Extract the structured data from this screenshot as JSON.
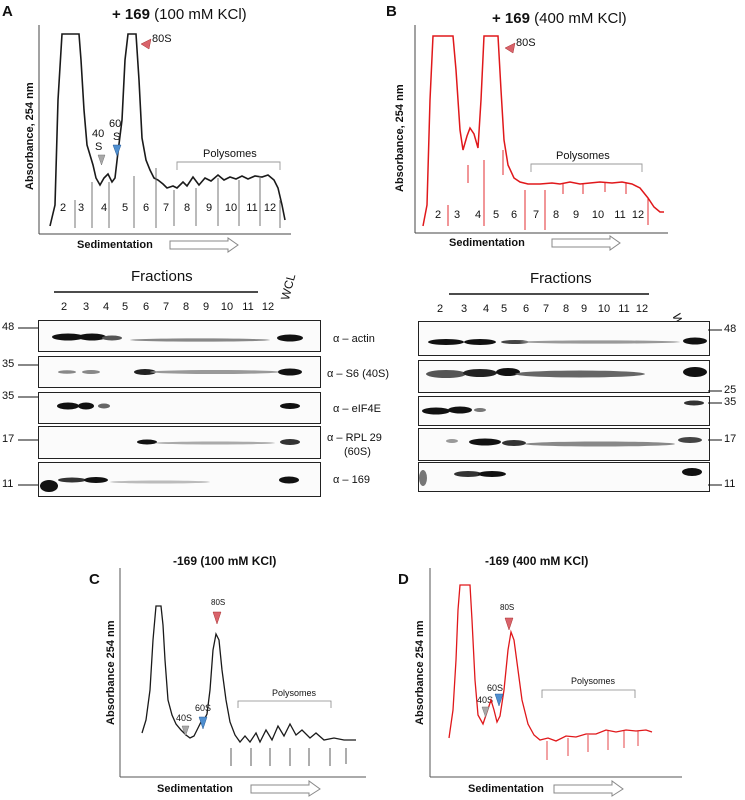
{
  "panels": {
    "A": {
      "letter": "A",
      "title_bold": "+ 169",
      "title_rest": " (100 mM KCl)",
      "ylabel": "Absorbance, 254 nm",
      "xlabel": "Sedimentation",
      "peak_80s": "80S",
      "label_40s_a": "40",
      "label_40s_b": "S",
      "label_60s_a": "60",
      "label_60s_b": "S",
      "polysomes": "Polysomes",
      "fractions": [
        "2",
        "3",
        "4",
        "5",
        "6",
        "7",
        "8",
        "9",
        "10",
        "11",
        "12"
      ],
      "trace_color": "#1a1a1a"
    },
    "B": {
      "letter": "B",
      "title_bold": "+ 169",
      "title_rest": " (400 mM KCl)",
      "ylabel": "Absorbance, 254 nm",
      "xlabel": "Sedimentation",
      "peak_80s": "80S",
      "polysomes": "Polysomes",
      "fractions": [
        "2",
        "3",
        "4",
        "5",
        "6",
        "7",
        "8",
        "9",
        "10",
        "11",
        "12"
      ],
      "trace_color": "#e0181b"
    },
    "C": {
      "letter": "C",
      "title": "-169 (100 mM KCl)",
      "ylabel": "Absorbance 254 nm",
      "xlabel": "Sedimentation",
      "peak_80s": "80S",
      "peak_40s": "40S",
      "peak_60s": "60S",
      "polysomes": "Polysomes",
      "trace_color": "#1a1a1a"
    },
    "D": {
      "letter": "D",
      "title": "-169 (400 mM KCl)",
      "ylabel": "Absorbance 254 nm",
      "xlabel": "Sedimentation",
      "peak_80s": "80S",
      "peak_40s": "40S",
      "peak_60s": "60S",
      "polysomes": "Polysomes",
      "trace_color": "#e0181b"
    }
  },
  "blots": {
    "fractions_label": "Fractions",
    "fraction_numbers": [
      "2",
      "3",
      "4",
      "5",
      "6",
      "7",
      "8",
      "9",
      "10",
      "11",
      "12"
    ],
    "wcl": "WCL",
    "antibodies": [
      "α – actin",
      "α – S6 (40S)",
      "α – eIF4E",
      "α – RPL 29",
      "(60S)",
      "α – 169"
    ],
    "left_mw": [
      "48",
      "35",
      "35",
      "17",
      "11"
    ],
    "right_mw": [
      "48",
      "25",
      "35",
      "17",
      "11"
    ]
  },
  "colors": {
    "arrow_80s": "#d9636b",
    "arrow_60s": "#4f8fd0",
    "arrow_40s": "#a8a8a8",
    "black_trace": "#1a1a1a",
    "red_trace": "#e0181b"
  }
}
